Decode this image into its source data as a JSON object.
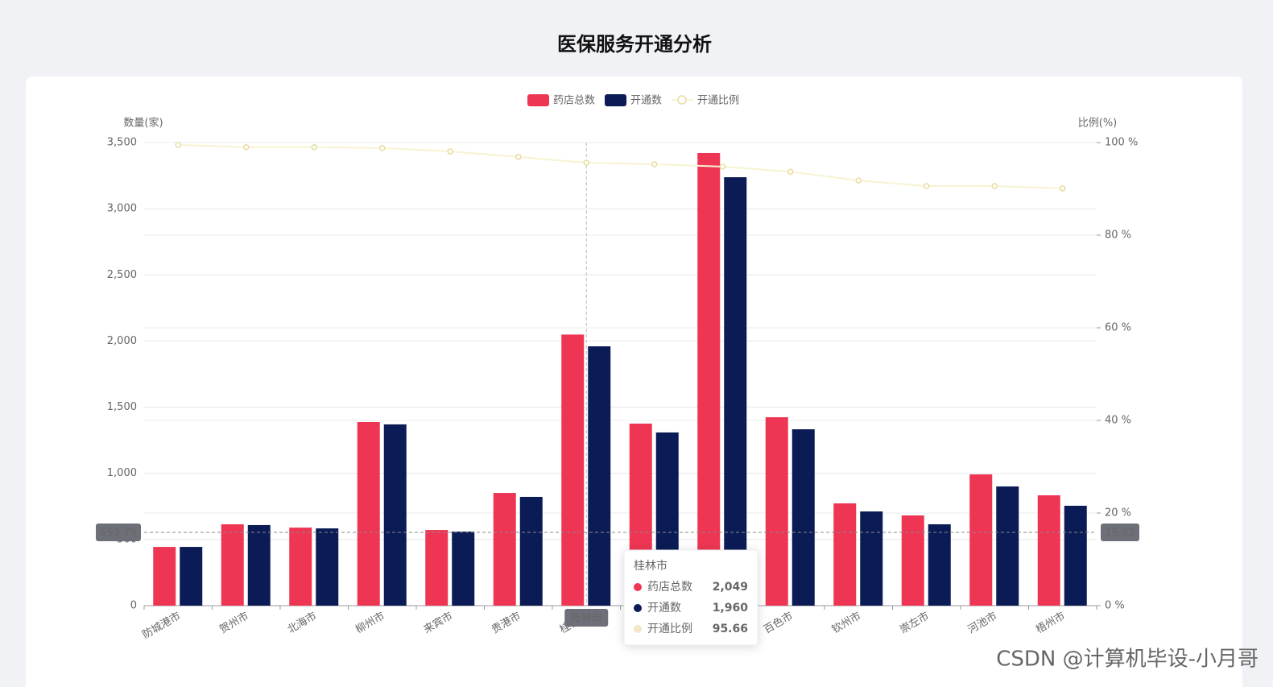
{
  "chart_data": {
    "type": "bar",
    "title": "医保服务开通分析",
    "y_axis_label": "数量(家)",
    "y2_axis_label": "比例(%)",
    "categories": [
      "防城港市",
      "贺州市",
      "北海市",
      "柳州市",
      "来宾市",
      "贵港市",
      "桂林市",
      null,
      null,
      "百色市",
      "钦州市",
      "崇左市",
      "河池市",
      "梧州市"
    ],
    "series": [
      {
        "name": "药店总数",
        "type": "bar",
        "color": "#ee3654",
        "values": [
          444,
          615,
          590,
          1388,
          572,
          852,
          2049,
          1376,
          3421,
          1424,
          773,
          682,
          992,
          834
        ]
      },
      {
        "name": "开通数",
        "type": "bar",
        "color": "#0b1b55",
        "values": [
          444,
          609,
          584,
          1370,
          560,
          822,
          1960,
          1309,
          3238,
          1333,
          712,
          615,
          901,
          755
        ]
      },
      {
        "name": "开通比例",
        "type": "line",
        "axis": "y2",
        "color": "#f7f3d2",
        "values": [
          99.5,
          99.0,
          99.0,
          98.8,
          98.1,
          96.9,
          95.66,
          95.3,
          94.8,
          93.7,
          91.8,
          90.6,
          90.6,
          90.1
        ]
      }
    ],
    "ylim": [
      0,
      3500
    ],
    "yticks": [
      0,
      500,
      {
        "value": 1000,
        "label": "1,000"
      },
      {
        "value": 1500,
        "label": "1,500"
      },
      {
        "value": 2000,
        "label": "2,000"
      },
      {
        "value": 2500,
        "label": "2,500"
      },
      {
        "value": 3000,
        "label": "3,000"
      },
      {
        "value": 3500,
        "label": "3,500"
      }
    ],
    "y2lim": [
      0,
      100
    ],
    "y2ticks": [
      {
        "value": 0,
        "label": "0 %"
      },
      {
        "value": 20,
        "label": "20 %"
      },
      {
        "value": 40,
        "label": "40 %"
      },
      {
        "value": 60,
        "label": "60 %"
      },
      {
        "value": 80,
        "label": "80 %"
      },
      {
        "value": 100,
        "label": "100 %"
      }
    ],
    "grid": true,
    "legend": "top",
    "axis_pointer": {
      "category": "桂林市",
      "index": 6,
      "y": 553.79,
      "y2": 15.82
    },
    "tooltip": {
      "title": "桂林市",
      "rows": [
        {
          "name": "药店总数",
          "value": "2,049"
        },
        {
          "name": "开通数",
          "value": "1,960"
        },
        {
          "name": "开通比例",
          "value": "95.66"
        }
      ]
    },
    "watermark": "CSDN @计算机毕设-小月哥"
  }
}
